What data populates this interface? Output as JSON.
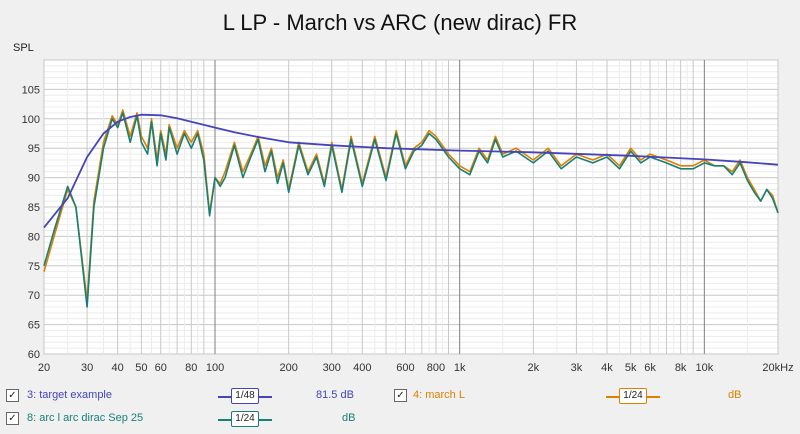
{
  "chart_data": {
    "type": "line",
    "title": "L LP - March vs ARC (new dirac) FR",
    "ylabel": "SPL",
    "xlabel": "",
    "x_scale": "log",
    "xlim": [
      20,
      20000
    ],
    "ylim": [
      60,
      110
    ],
    "grid": true,
    "x_tick_labels": [
      {
        "value": 20,
        "label": "20"
      },
      {
        "value": 30,
        "label": "30"
      },
      {
        "value": 40,
        "label": "40"
      },
      {
        "value": 50,
        "label": "50"
      },
      {
        "value": 60,
        "label": "60"
      },
      {
        "value": 80,
        "label": "80"
      },
      {
        "value": 100,
        "label": "100"
      },
      {
        "value": 200,
        "label": "200"
      },
      {
        "value": 300,
        "label": "300"
      },
      {
        "value": 400,
        "label": "400"
      },
      {
        "value": 600,
        "label": "600"
      },
      {
        "value": 800,
        "label": "800"
      },
      {
        "value": 1000,
        "label": "1k"
      },
      {
        "value": 2000,
        "label": "2k"
      },
      {
        "value": 3000,
        "label": "3k"
      },
      {
        "value": 4000,
        "label": "4k"
      },
      {
        "value": 5000,
        "label": "5k"
      },
      {
        "value": 6000,
        "label": "6k"
      },
      {
        "value": 8000,
        "label": "8k"
      },
      {
        "value": 10000,
        "label": "10k"
      },
      {
        "value": 20000,
        "label": "20kHz"
      }
    ],
    "y_ticks": [
      60,
      65,
      70,
      75,
      80,
      85,
      90,
      95,
      100,
      105
    ],
    "series": [
      {
        "name": "3: target example",
        "color": "#4444bb",
        "x": [
          20,
          25,
          30,
          35,
          40,
          45,
          50,
          60,
          70,
          80,
          100,
          120,
          150,
          200,
          300,
          500,
          1000,
          2000,
          5000,
          10000,
          15000,
          20000
        ],
        "y": [
          81.5,
          86.5,
          93.5,
          97.5,
          99.5,
          100.3,
          100.7,
          100.6,
          100.1,
          99.5,
          98.5,
          97.7,
          96.9,
          96.0,
          95.5,
          95.0,
          94.6,
          94.3,
          93.7,
          93.1,
          92.6,
          92.2
        ]
      },
      {
        "name": "4: march L",
        "color": "#dd8000",
        "x": [
          20,
          22,
          25,
          27,
          30,
          32,
          35,
          38,
          40,
          42,
          45,
          48,
          50,
          53,
          55,
          58,
          60,
          63,
          65,
          70,
          75,
          80,
          85,
          90,
          95,
          100,
          105,
          110,
          120,
          130,
          140,
          150,
          160,
          170,
          180,
          190,
          200,
          220,
          240,
          260,
          280,
          300,
          330,
          360,
          400,
          450,
          500,
          550,
          600,
          650,
          700,
          750,
          800,
          900,
          1000,
          1100,
          1200,
          1300,
          1400,
          1500,
          1700,
          2000,
          2300,
          2600,
          3000,
          3500,
          4000,
          4500,
          5000,
          5500,
          6000,
          7000,
          8000,
          9000,
          10000,
          11000,
          12000,
          13000,
          14000,
          15000,
          16000,
          17000,
          18000,
          19000,
          20000
        ],
        "y": [
          74,
          80,
          88,
          85,
          69,
          86,
          96,
          100.5,
          99,
          101.5,
          97,
          101,
          97,
          95,
          100,
          93,
          98,
          94,
          99,
          95,
          98,
          96,
          98,
          94,
          84,
          90,
          89,
          91,
          96,
          91,
          94,
          97,
          92,
          95,
          90,
          93,
          88,
          96,
          91,
          94,
          89,
          96,
          88,
          97,
          89,
          97,
          90,
          98,
          92,
          95,
          96,
          98,
          97,
          94,
          92,
          91,
          95,
          93,
          97,
          94,
          95,
          93,
          95,
          92,
          94,
          93,
          94,
          92,
          95,
          93,
          94,
          93,
          92,
          92,
          93,
          92,
          92,
          91,
          93,
          90,
          88,
          86,
          88,
          87,
          84
        ]
      },
      {
        "name": "8: arc l arc dirac Sep 25",
        "color": "#187f77",
        "x": [
          20,
          22,
          25,
          27,
          30,
          32,
          35,
          38,
          40,
          42,
          45,
          48,
          50,
          53,
          55,
          58,
          60,
          63,
          65,
          70,
          75,
          80,
          85,
          90,
          95,
          100,
          105,
          110,
          120,
          130,
          140,
          150,
          160,
          170,
          180,
          190,
          200,
          220,
          240,
          260,
          280,
          300,
          330,
          360,
          400,
          450,
          500,
          550,
          600,
          650,
          700,
          750,
          800,
          900,
          1000,
          1100,
          1200,
          1300,
          1400,
          1500,
          1700,
          2000,
          2300,
          2600,
          3000,
          3500,
          4000,
          4500,
          5000,
          5500,
          6000,
          7000,
          8000,
          9000,
          10000,
          11000,
          12000,
          13000,
          14000,
          15000,
          16000,
          17000,
          18000,
          19000,
          20000
        ],
        "y": [
          75,
          81,
          88.5,
          85,
          68,
          85,
          95,
          100,
          98.5,
          101,
          96,
          100.5,
          96,
          94,
          99.5,
          92,
          97.5,
          93,
          98.5,
          94,
          97.5,
          95,
          97.5,
          93,
          83.5,
          90,
          88.5,
          90,
          95.5,
          90,
          93.5,
          96.5,
          91,
          94.5,
          89,
          92.5,
          87.5,
          95.5,
          90.5,
          93.5,
          88.5,
          95.5,
          87.5,
          96.5,
          88.5,
          96.5,
          89.5,
          97.5,
          91.5,
          94.5,
          95.5,
          97.5,
          96.5,
          93.5,
          91.5,
          90.5,
          94.5,
          92.5,
          96.5,
          93.5,
          94.5,
          92.5,
          94.5,
          91.5,
          93.5,
          92.5,
          93.5,
          91.5,
          94.5,
          92.5,
          93.5,
          92.5,
          91.5,
          91.5,
          92.5,
          92,
          92,
          90.5,
          92.5,
          89.5,
          87.5,
          86,
          88,
          86.5,
          84
        ]
      }
    ]
  },
  "legend": [
    {
      "checked_mark": "✓",
      "label": "3: target example",
      "smoothing": "1/48",
      "offset": "81.5 dB",
      "color": "#4444bb"
    },
    {
      "checked_mark": "✓",
      "label": "4: march L",
      "smoothing": "1/24",
      "offset": "dB",
      "color": "#dd8000"
    },
    {
      "checked_mark": "✓",
      "label": "8: arc l arc dirac Sep 25",
      "smoothing": "1/24",
      "offset": "dB",
      "color": "#187f77"
    }
  ]
}
